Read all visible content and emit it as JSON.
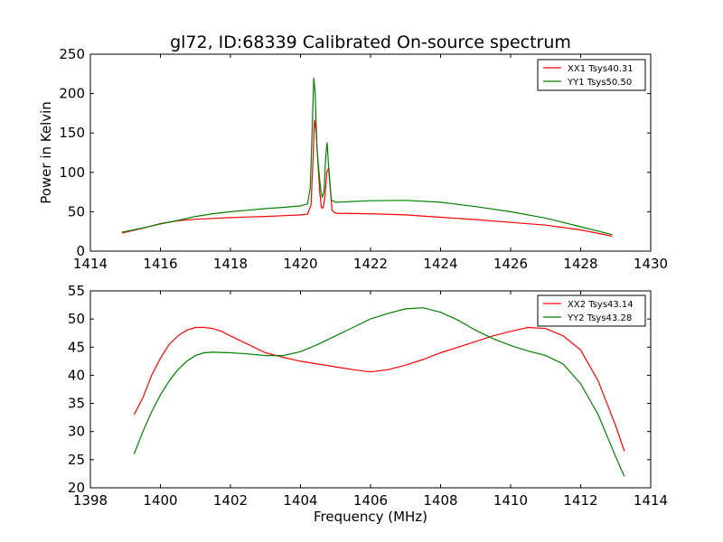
{
  "title": "gl72, ID:68339 Calibrated On-source spectrum",
  "colors": {
    "red": "#ff0000",
    "green": "#008000",
    "axis": "#000000"
  },
  "chart_data": [
    {
      "type": "line",
      "ylabel": "Power in Kelvin",
      "xlabel": "",
      "xlim": [
        1414,
        1430
      ],
      "ylim": [
        0,
        250
      ],
      "xticks": [
        1414,
        1416,
        1418,
        1420,
        1422,
        1424,
        1426,
        1428,
        1430
      ],
      "yticks": [
        0,
        50,
        100,
        150,
        200,
        250
      ],
      "legend_position": "top-right",
      "series": [
        {
          "name": "XX1 Tsys40.31",
          "color": "#ff0000",
          "points": [
            [
              1414.9,
              23
            ],
            [
              1415.5,
              29
            ],
            [
              1416,
              35
            ],
            [
              1416.5,
              38.5
            ],
            [
              1417,
              40.5
            ],
            [
              1417.5,
              41.5
            ],
            [
              1418,
              42.5
            ],
            [
              1418.5,
              43.3
            ],
            [
              1419,
              44
            ],
            [
              1419.5,
              45
            ],
            [
              1420,
              46
            ],
            [
              1420.2,
              47
            ],
            [
              1420.3,
              58
            ],
            [
              1420.35,
              110
            ],
            [
              1420.4,
              167
            ],
            [
              1420.45,
              150
            ],
            [
              1420.5,
              110
            ],
            [
              1420.55,
              75
            ],
            [
              1420.6,
              55
            ],
            [
              1420.65,
              55
            ],
            [
              1420.7,
              70
            ],
            [
              1420.75,
              100
            ],
            [
              1420.8,
              105
            ],
            [
              1420.85,
              80
            ],
            [
              1420.9,
              52
            ],
            [
              1421,
              48
            ],
            [
              1422,
              47.5
            ],
            [
              1423,
              46
            ],
            [
              1424,
              43
            ],
            [
              1425,
              40
            ],
            [
              1426,
              36.5
            ],
            [
              1427,
              33
            ],
            [
              1428,
              27
            ],
            [
              1428.9,
              19
            ]
          ]
        },
        {
          "name": "YY1 Tsys50.50",
          "color": "#008000",
          "points": [
            [
              1414.9,
              24
            ],
            [
              1415.5,
              29.5
            ],
            [
              1416,
              34.5
            ],
            [
              1416.5,
              39
            ],
            [
              1417,
              44
            ],
            [
              1417.5,
              47.5
            ],
            [
              1418,
              50
            ],
            [
              1418.5,
              52
            ],
            [
              1419,
              54
            ],
            [
              1419.5,
              55.5
            ],
            [
              1420,
              57.5
            ],
            [
              1420.2,
              60
            ],
            [
              1420.28,
              80
            ],
            [
              1420.33,
              150
            ],
            [
              1420.38,
              220
            ],
            [
              1420.42,
              200
            ],
            [
              1420.47,
              130
            ],
            [
              1420.52,
              105
            ],
            [
              1420.57,
              80
            ],
            [
              1420.62,
              68
            ],
            [
              1420.67,
              75
            ],
            [
              1420.72,
              120
            ],
            [
              1420.76,
              138
            ],
            [
              1420.8,
              110
            ],
            [
              1420.88,
              65
            ],
            [
              1421,
              62
            ],
            [
              1422,
              64
            ],
            [
              1423,
              64.5
            ],
            [
              1424,
              62
            ],
            [
              1425,
              56.5
            ],
            [
              1426,
              50
            ],
            [
              1427,
              42
            ],
            [
              1428,
              31
            ],
            [
              1428.9,
              21
            ]
          ]
        }
      ]
    },
    {
      "type": "line",
      "ylabel": "",
      "xlabel": "Frequency (MHz)",
      "xlim": [
        1398,
        1414
      ],
      "ylim": [
        20,
        55
      ],
      "xticks": [
        1398,
        1400,
        1402,
        1404,
        1406,
        1408,
        1410,
        1412,
        1414
      ],
      "yticks": [
        20,
        25,
        30,
        35,
        40,
        45,
        50,
        55
      ],
      "legend_position": "top-right",
      "series": [
        {
          "name": "XX2 Tsys43.14",
          "color": "#ff0000",
          "points": [
            [
              1399.25,
              33
            ],
            [
              1399.5,
              36
            ],
            [
              1399.75,
              40
            ],
            [
              1400,
              43
            ],
            [
              1400.25,
              45.5
            ],
            [
              1400.5,
              47
            ],
            [
              1400.75,
              48
            ],
            [
              1401,
              48.5
            ],
            [
              1401.25,
              48.5
            ],
            [
              1401.5,
              48.3
            ],
            [
              1401.75,
              47.8
            ],
            [
              1402,
              47
            ],
            [
              1402.5,
              45.5
            ],
            [
              1403,
              44
            ],
            [
              1403.5,
              43.2
            ],
            [
              1404,
              42.5
            ],
            [
              1404.5,
              42
            ],
            [
              1405,
              41.5
            ],
            [
              1405.5,
              41
            ],
            [
              1406,
              40.6
            ],
            [
              1406.5,
              41
            ],
            [
              1407,
              41.8
            ],
            [
              1407.5,
              42.8
            ],
            [
              1408,
              44
            ],
            [
              1408.5,
              45
            ],
            [
              1409,
              46
            ],
            [
              1409.5,
              47
            ],
            [
              1410,
              47.8
            ],
            [
              1410.5,
              48.5
            ],
            [
              1411,
              48.3
            ],
            [
              1411.5,
              47
            ],
            [
              1412,
              44.5
            ],
            [
              1412.5,
              39
            ],
            [
              1413,
              31
            ],
            [
              1413.25,
              26.5
            ]
          ]
        },
        {
          "name": "YY2 Tsys43.28",
          "color": "#008000",
          "points": [
            [
              1399.25,
              26
            ],
            [
              1399.5,
              30
            ],
            [
              1399.75,
              33.5
            ],
            [
              1400,
              36.5
            ],
            [
              1400.25,
              39
            ],
            [
              1400.5,
              41
            ],
            [
              1400.75,
              42.5
            ],
            [
              1401,
              43.5
            ],
            [
              1401.25,
              44
            ],
            [
              1401.5,
              44.1
            ],
            [
              1402,
              44
            ],
            [
              1402.5,
              43.8
            ],
            [
              1403,
              43.5
            ],
            [
              1403.5,
              43.5
            ],
            [
              1404,
              44.2
            ],
            [
              1404.5,
              45.5
            ],
            [
              1405,
              47
            ],
            [
              1405.5,
              48.5
            ],
            [
              1406,
              50
            ],
            [
              1406.5,
              51
            ],
            [
              1407,
              51.8
            ],
            [
              1407.5,
              52
            ],
            [
              1408,
              51.2
            ],
            [
              1408.5,
              49.8
            ],
            [
              1409,
              48
            ],
            [
              1409.5,
              46.5
            ],
            [
              1410,
              45.3
            ],
            [
              1410.5,
              44.3
            ],
            [
              1411,
              43.5
            ],
            [
              1411.5,
              42
            ],
            [
              1412,
              38.5
            ],
            [
              1412.5,
              33
            ],
            [
              1413,
              25.5
            ],
            [
              1413.25,
              22
            ]
          ]
        }
      ]
    }
  ]
}
